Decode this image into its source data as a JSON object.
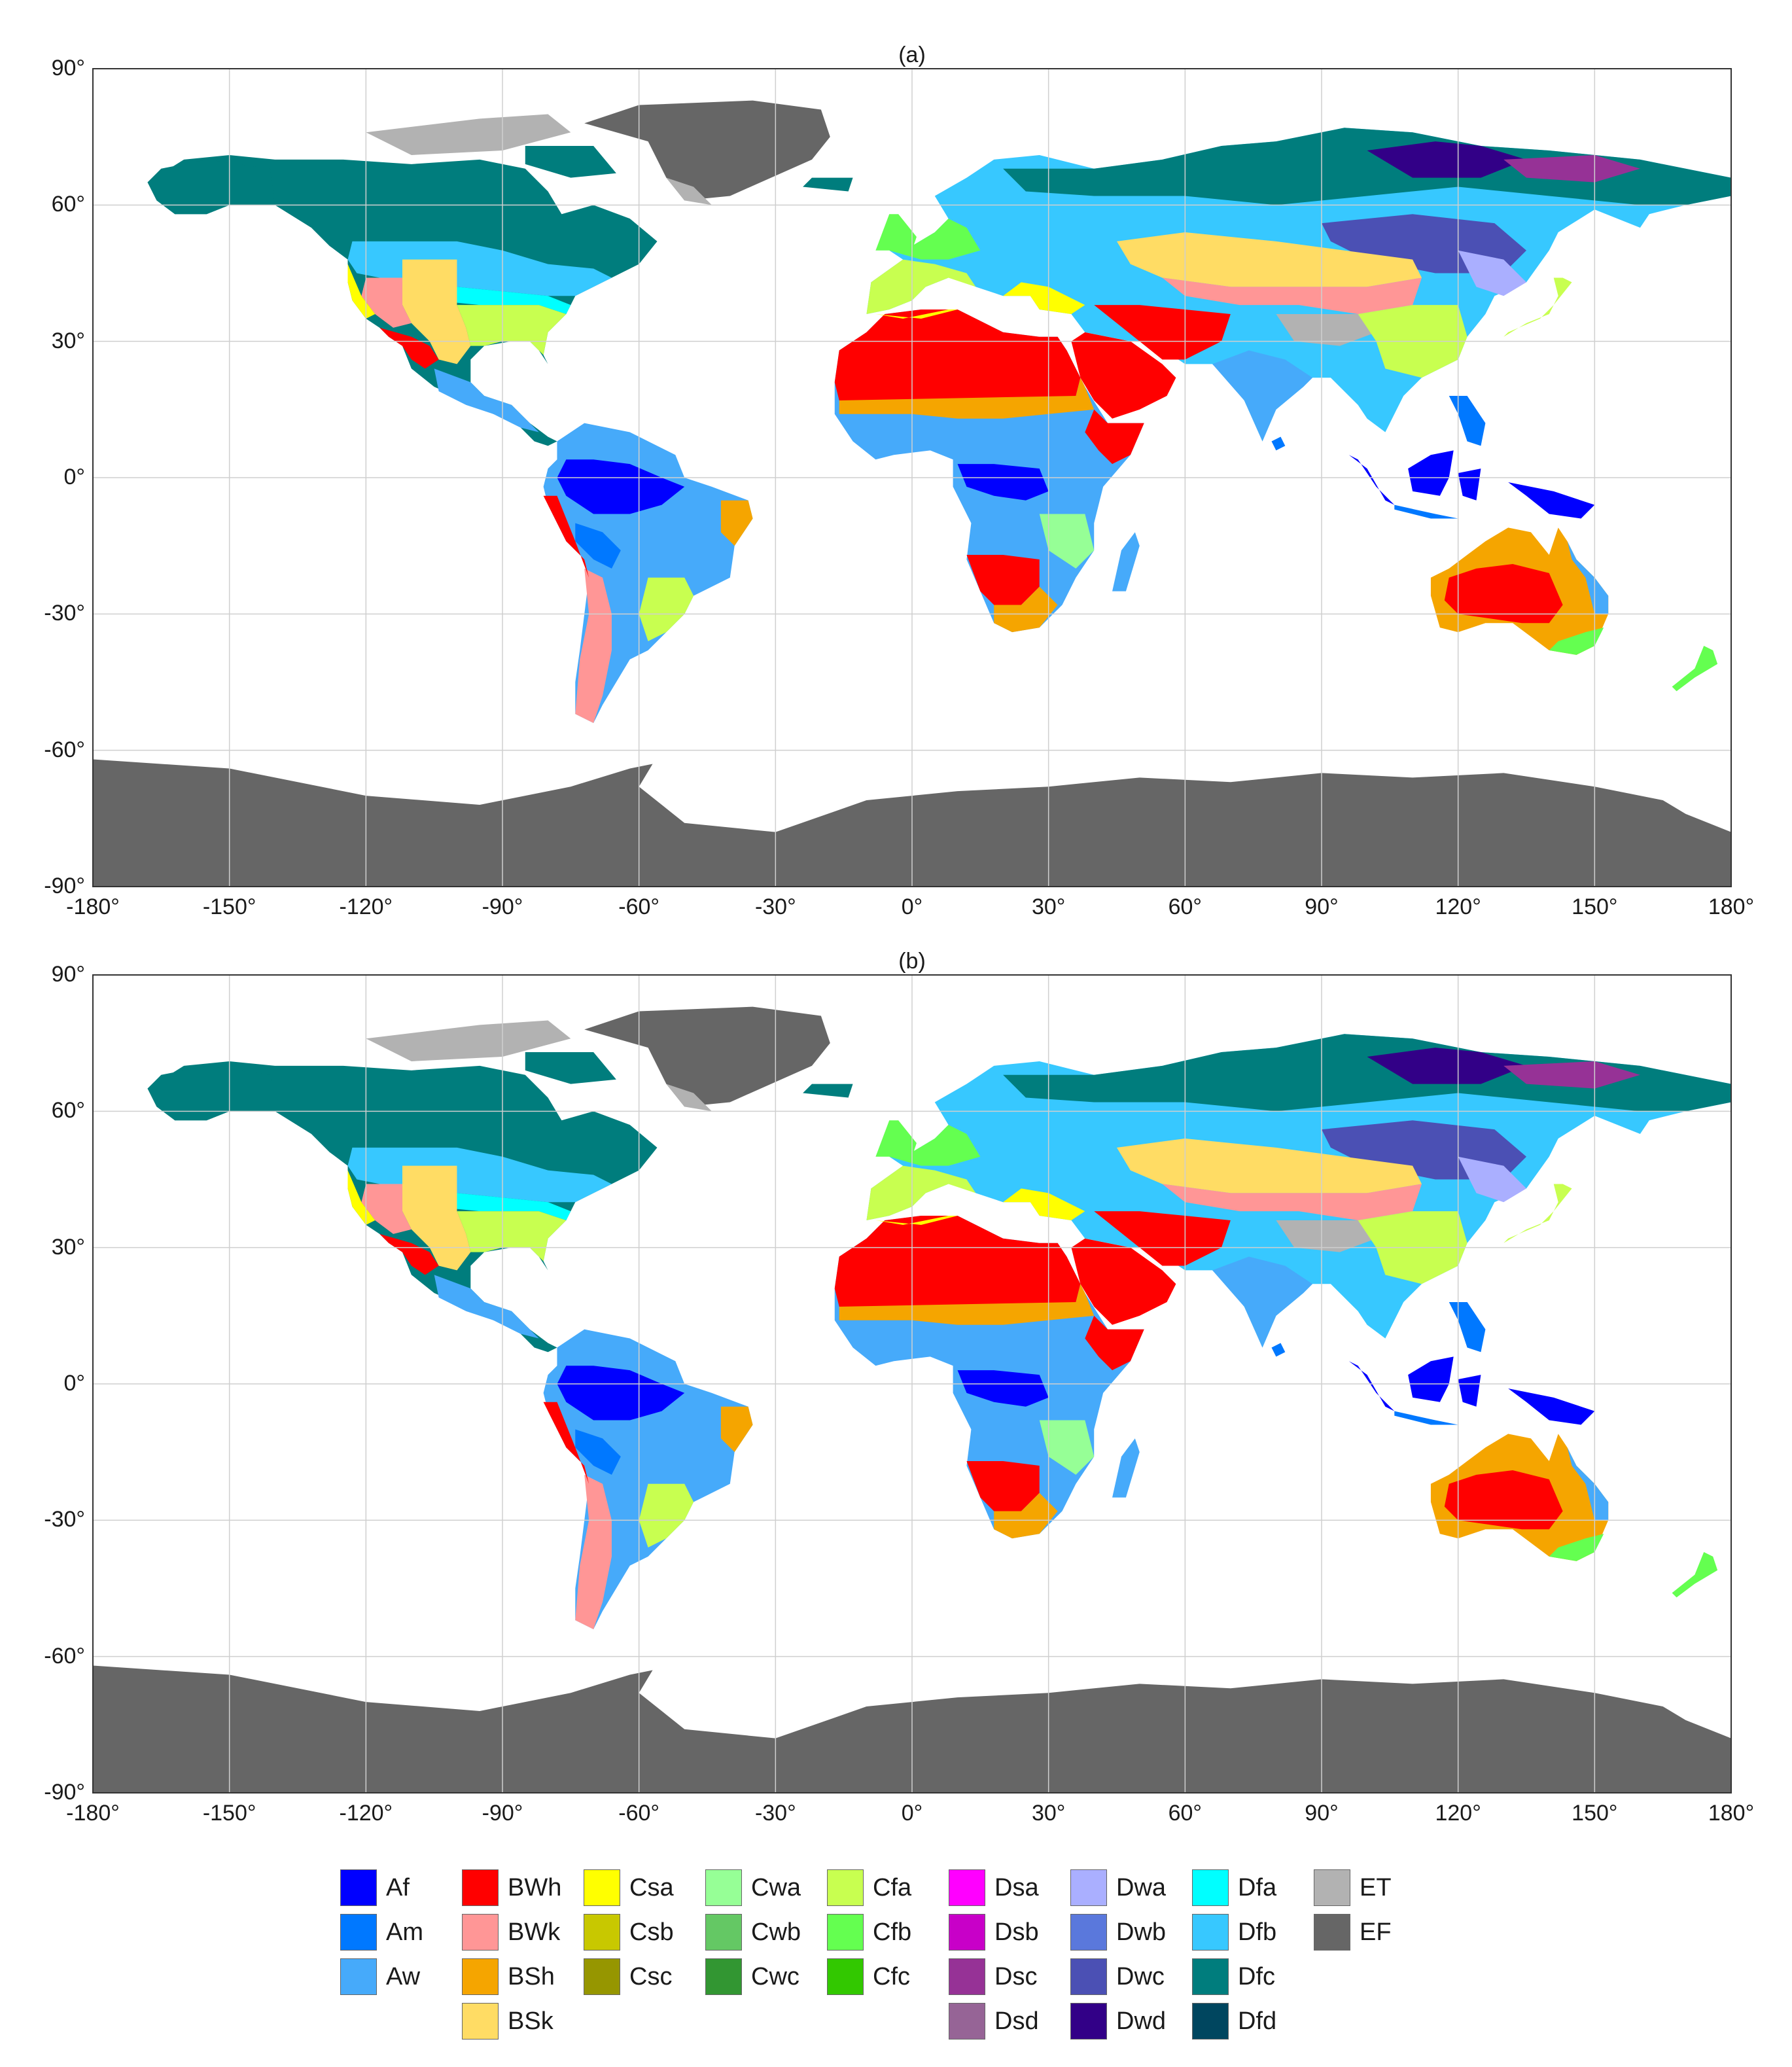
{
  "panels": [
    {
      "title": "(a)",
      "lat_ticks": [
        "90°",
        "60°",
        "30°",
        "0°",
        "-30°",
        "-60°",
        "-90°"
      ],
      "lon_ticks": [
        "-180°",
        "-150°",
        "-120°",
        "-90°",
        "-60°",
        "-30°",
        "0°",
        "30°",
        "60°",
        "90°",
        "120°",
        "150°",
        "180°"
      ]
    },
    {
      "title": "(b)",
      "lat_ticks": [
        "90°",
        "60°",
        "30°",
        "0°",
        "-30°",
        "-60°",
        "-90°"
      ],
      "lon_ticks": [
        "-180°",
        "-150°",
        "-120°",
        "-90°",
        "-60°",
        "-30°",
        "0°",
        "30°",
        "60°",
        "90°",
        "120°",
        "150°",
        "180°"
      ]
    }
  ],
  "legend": {
    "columns": [
      [
        {
          "label": "Af",
          "color": "#0000FF"
        },
        {
          "label": "Am",
          "color": "#0078FF"
        },
        {
          "label": "Aw",
          "color": "#46AAFA"
        }
      ],
      [
        {
          "label": "BWh",
          "color": "#FF0000"
        },
        {
          "label": "BWk",
          "color": "#FF9696"
        },
        {
          "label": "BSh",
          "color": "#F5A500"
        },
        {
          "label": "BSk",
          "color": "#FFDC64"
        }
      ],
      [
        {
          "label": "Csa",
          "color": "#FFFF00"
        },
        {
          "label": "Csb",
          "color": "#C8C800"
        },
        {
          "label": "Csc",
          "color": "#969600"
        }
      ],
      [
        {
          "label": "Cwa",
          "color": "#96FF96"
        },
        {
          "label": "Cwb",
          "color": "#64C864"
        },
        {
          "label": "Cwc",
          "color": "#329632"
        }
      ],
      [
        {
          "label": "Cfa",
          "color": "#C8FF50"
        },
        {
          "label": "Cfb",
          "color": "#64FF50"
        },
        {
          "label": "Cfc",
          "color": "#32C800"
        }
      ],
      [
        {
          "label": "Dsa",
          "color": "#FF00FF"
        },
        {
          "label": "Dsb",
          "color": "#C800C8"
        },
        {
          "label": "Dsc",
          "color": "#963296"
        },
        {
          "label": "Dsd",
          "color": "#966496"
        }
      ],
      [
        {
          "label": "Dwa",
          "color": "#AAAFFF"
        },
        {
          "label": "Dwb",
          "color": "#5A78DC"
        },
        {
          "label": "Dwc",
          "color": "#4B50B4"
        },
        {
          "label": "Dwd",
          "color": "#320087"
        }
      ],
      [
        {
          "label": "Dfa",
          "color": "#00FFFF"
        },
        {
          "label": "Dfb",
          "color": "#37C8FF"
        },
        {
          "label": "Dfc",
          "color": "#007D7D"
        },
        {
          "label": "Dfd",
          "color": "#00465F"
        }
      ],
      [
        {
          "label": "ET",
          "color": "#B2B2B2"
        },
        {
          "label": "EF",
          "color": "#666666"
        }
      ]
    ]
  }
}
